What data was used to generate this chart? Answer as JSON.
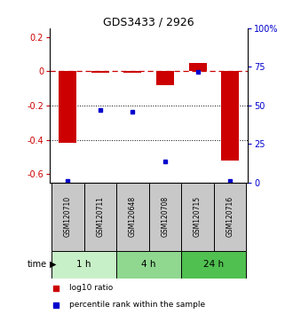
{
  "title": "GDS3433 / 2926",
  "samples": [
    "GSM120710",
    "GSM120711",
    "GSM120648",
    "GSM120708",
    "GSM120715",
    "GSM120716"
  ],
  "log10_ratio": [
    -0.42,
    -0.01,
    -0.01,
    -0.08,
    0.05,
    -0.52
  ],
  "percentile_rank": [
    1,
    47,
    46,
    14,
    72,
    1
  ],
  "bar_color": "#cc0000",
  "dot_color": "#0000cc",
  "ylim_left": [
    -0.65,
    0.25
  ],
  "ylim_right": [
    0,
    100
  ],
  "yticks_left": [
    0.2,
    0.0,
    -0.2,
    -0.4,
    -0.6
  ],
  "yticks_right": [
    100,
    75,
    50,
    25,
    0
  ],
  "dotted_lines": [
    -0.2,
    -0.4
  ],
  "bar_width": 0.55,
  "group_labels": [
    "1 h",
    "4 h",
    "24 h"
  ],
  "group_colors": [
    "#c8f0c8",
    "#90d890",
    "#50c050"
  ],
  "group_xranges": [
    [
      -0.5,
      1.5
    ],
    [
      1.5,
      3.5
    ],
    [
      3.5,
      5.5
    ]
  ],
  "gray_color": "#c8c8c8"
}
